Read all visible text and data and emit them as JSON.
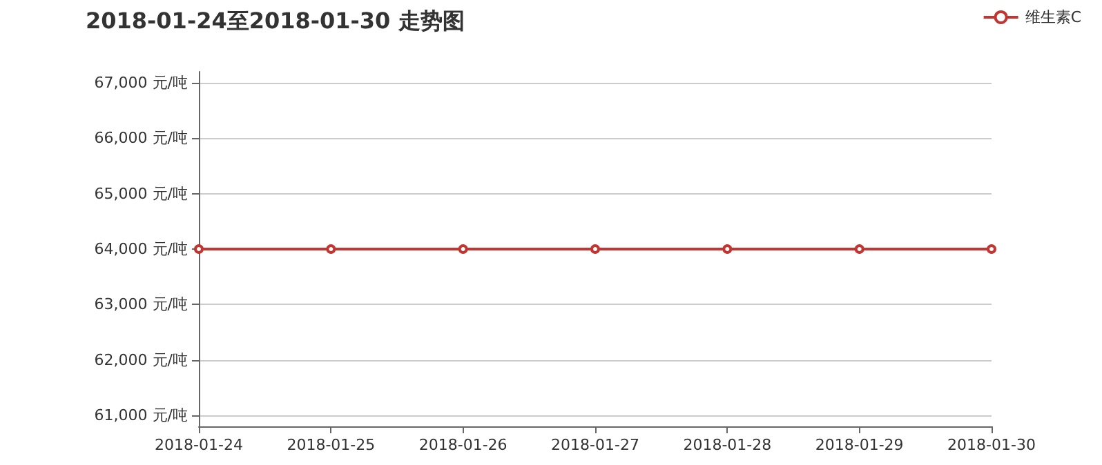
{
  "chart_data": {
    "type": "line",
    "title": "2018-01-24至2018-01-30 走势图",
    "categories": [
      "2018-01-24",
      "2018-01-25",
      "2018-01-26",
      "2018-01-27",
      "2018-01-28",
      "2018-01-29",
      "2018-01-30"
    ],
    "series": [
      {
        "name": "维生素C",
        "color": "#c23531",
        "values": [
          64000,
          64000,
          64000,
          64000,
          64000,
          64000,
          64000
        ]
      }
    ],
    "ylim": [
      60800,
      67200
    ],
    "yticks": [
      {
        "value": 61000,
        "label": "61,000 元/吨"
      },
      {
        "value": 62000,
        "label": "62,000 元/吨"
      },
      {
        "value": 63000,
        "label": "63,000 元/吨"
      },
      {
        "value": 64000,
        "label": "64,000 元/吨"
      },
      {
        "value": 65000,
        "label": "65,000 元/吨"
      },
      {
        "value": 66000,
        "label": "66,000 元/吨"
      },
      {
        "value": 67000,
        "label": "67,000 元/吨"
      }
    ],
    "grid": "y",
    "legend": "top right",
    "marker": "circle",
    "line_style": "solid"
  }
}
